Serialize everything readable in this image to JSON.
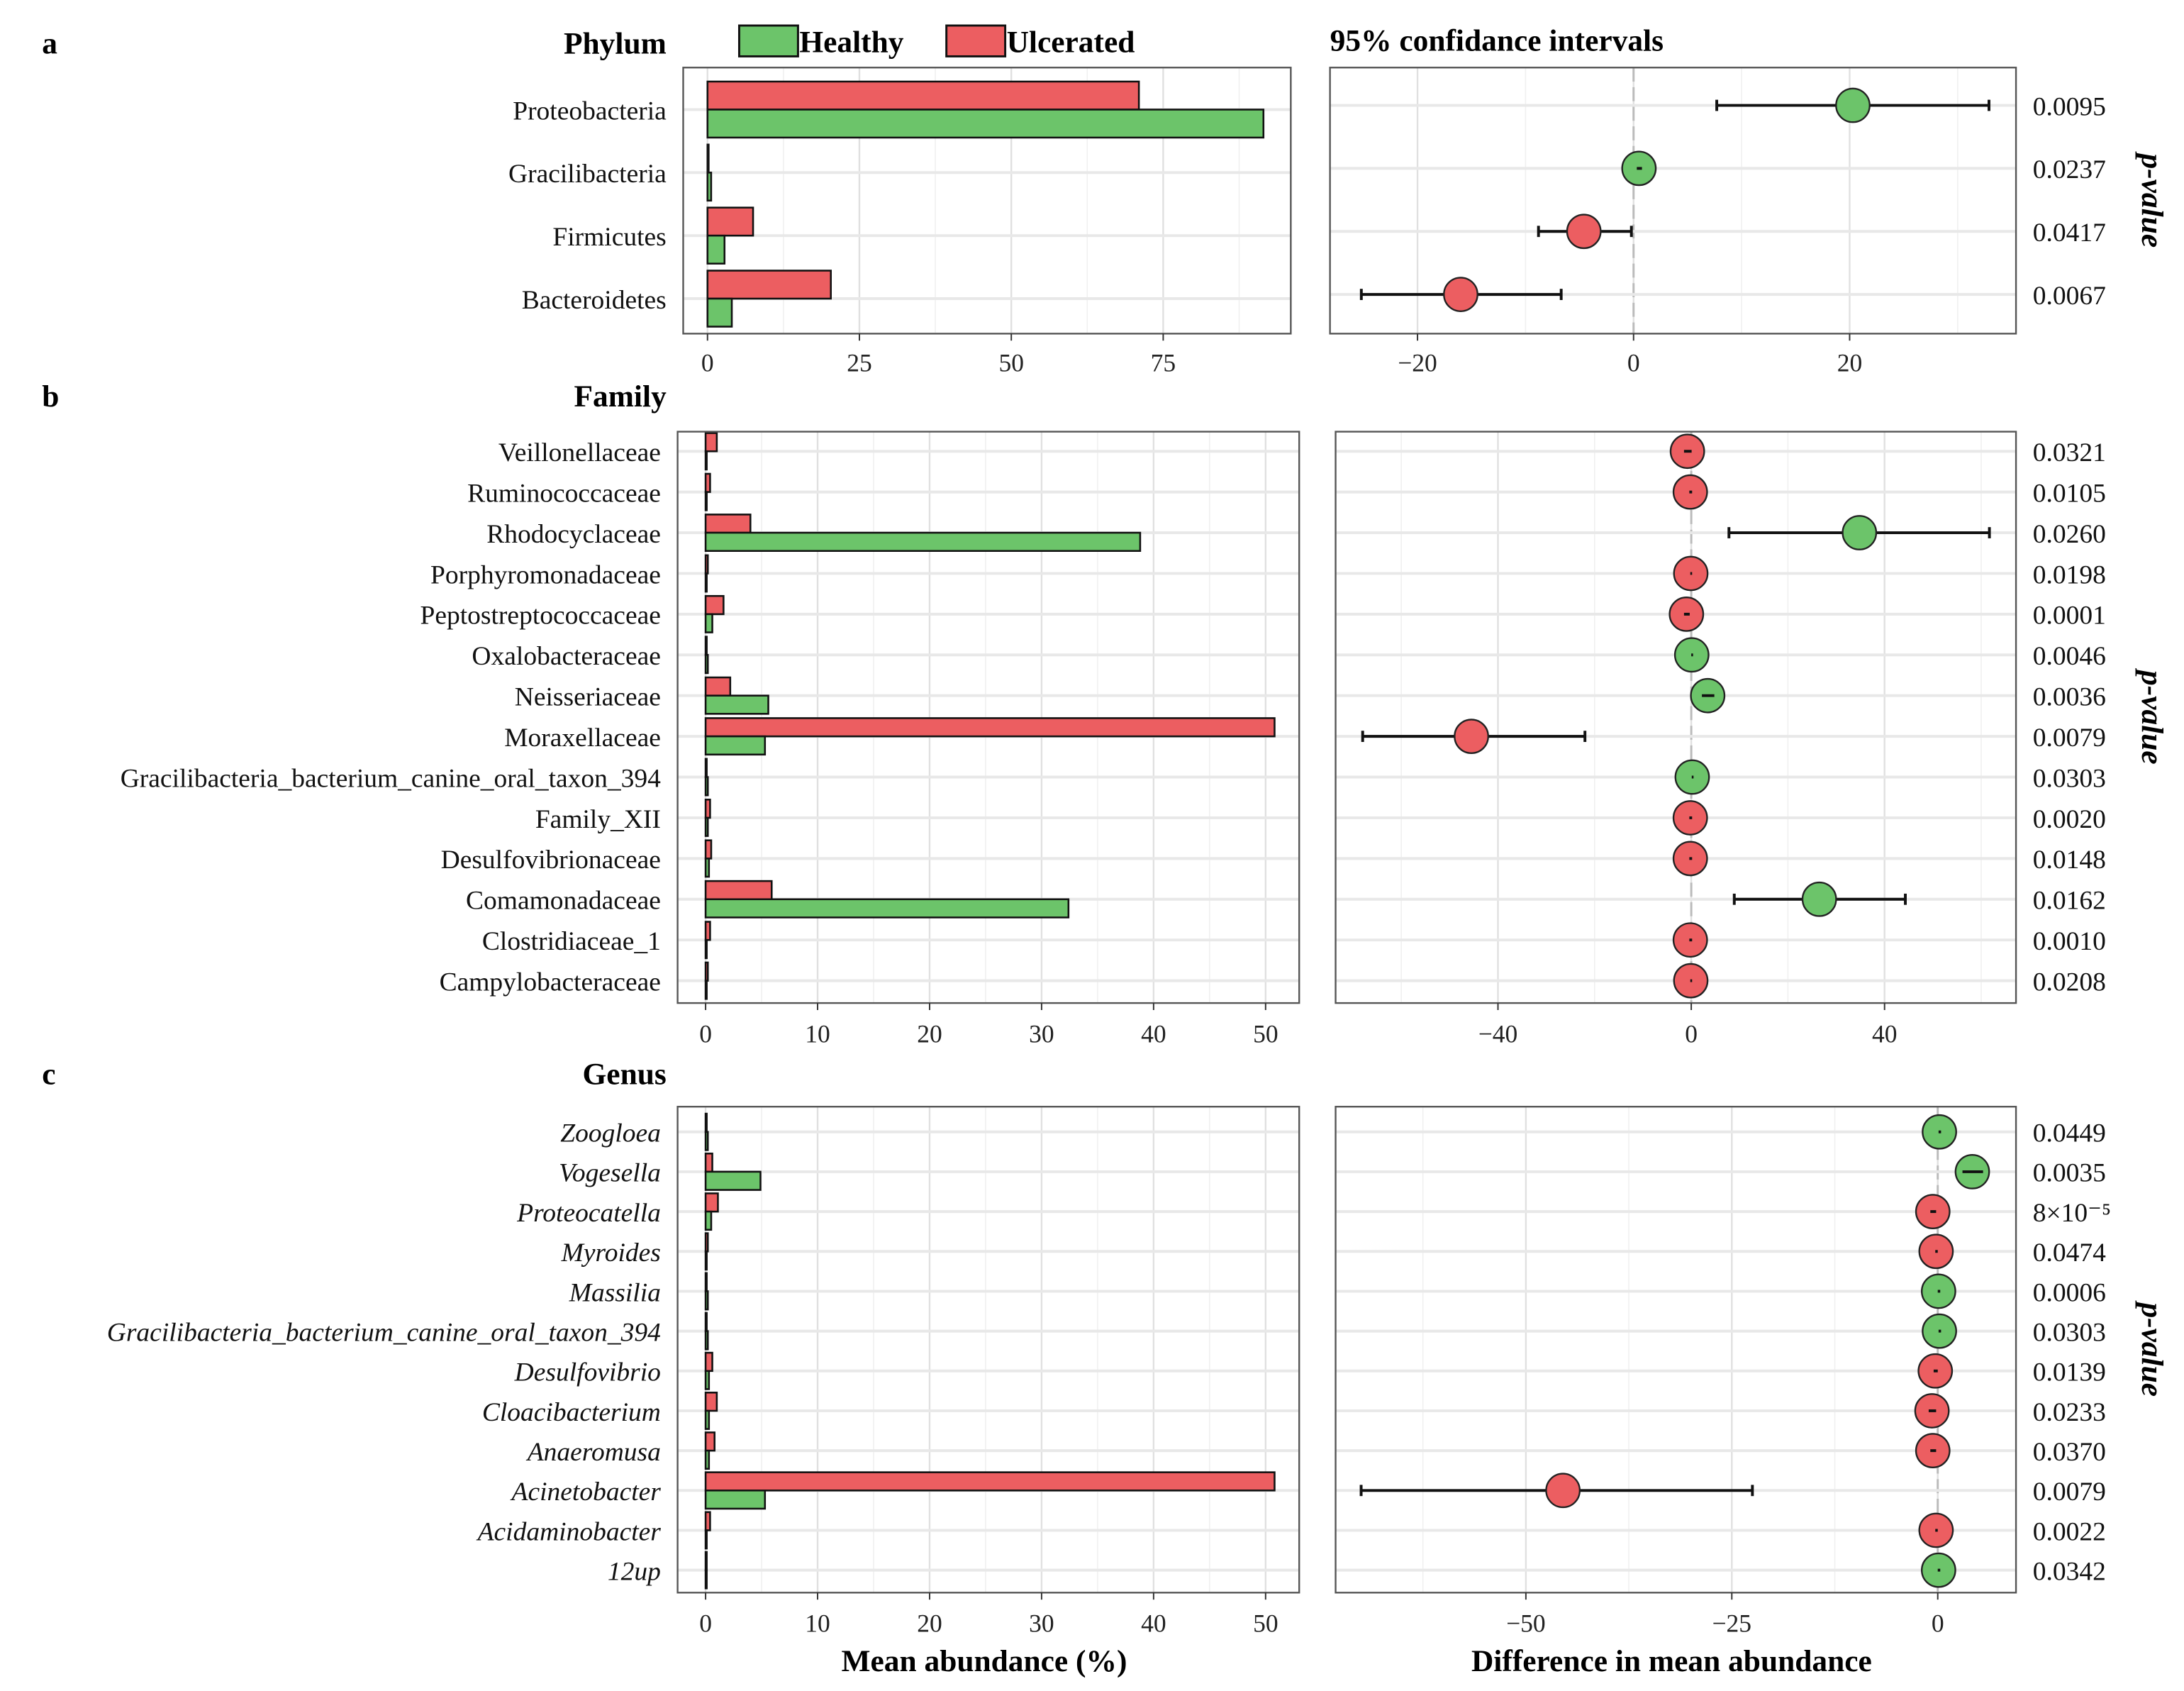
{
  "colors": {
    "healthy": "#6cc46a",
    "ulcerated": "#ec5e61",
    "grid": "#e6e6e6"
  },
  "legend": {
    "healthy": "Healthy",
    "ulcerated": "Ulcerated"
  },
  "ci_title": "95% confidance intervals",
  "pvalue_label": "p-value",
  "xlabel_left": "Mean abundance (%)",
  "xlabel_right": "Difference in mean abundance",
  "chart_data": [
    {
      "type": "bar",
      "panel": "a",
      "title": "Phylum",
      "italic": false,
      "categories": [
        "Proteobacteria",
        "Gracilibacteria",
        "Firmicutes",
        "Bacteroidetes"
      ],
      "series": [
        {
          "name": "Ulcerated",
          "values": [
            71,
            0.1,
            7.5,
            20.3
          ]
        },
        {
          "name": "Healthy",
          "values": [
            91.5,
            0.6,
            2.8,
            4.0
          ]
        }
      ],
      "xlim": [
        -4,
        96
      ],
      "xticks": [
        0,
        25,
        50,
        75
      ],
      "ci": {
        "estimate": [
          20.3,
          0.5,
          -4.6,
          -16.0
        ],
        "lower": [
          7.7,
          0.3,
          -8.8,
          -25.2
        ],
        "upper": [
          32.9,
          0.7,
          -0.2,
          -6.7
        ],
        "enriched": [
          "Healthy",
          "Healthy",
          "Ulcerated",
          "Ulcerated"
        ],
        "xlim": [
          -28.1,
          35.4
        ],
        "xticks": [
          -20,
          0,
          20
        ]
      },
      "p_values": [
        "0.0095",
        "0.0237",
        "0.0417",
        "0.0067"
      ]
    },
    {
      "type": "bar",
      "panel": "b",
      "title": "Family",
      "italic": false,
      "categories": [
        "Veillonellaceae",
        "Ruminococcaceae",
        "Rhodocyclaceae",
        "Porphyromonadaceae",
        "Peptostreptococcaceae",
        "Oxalobacteraceae",
        "Neisseriaceae",
        "Moraxellaceae",
        "Gracilibacteria_bacterium_canine_oral_taxon_394",
        "Family_XII",
        "Desulfovibrionaceae",
        "Comamonadaceae",
        "Clostridiaceae_1",
        "Campylobacteraceae"
      ],
      "series": [
        {
          "name": "Ulcerated",
          "values": [
            1.0,
            0.4,
            4.0,
            0.2,
            1.6,
            0.05,
            2.2,
            50.8,
            0.05,
            0.4,
            0.5,
            5.9,
            0.4,
            0.2
          ]
        },
        {
          "name": "Healthy",
          "values": [
            0.1,
            0.1,
            38.8,
            0.05,
            0.6,
            0.2,
            5.6,
            5.3,
            0.2,
            0.2,
            0.3,
            32.4,
            0.1,
            0.05
          ]
        }
      ],
      "xlim": [
        -2.5,
        53
      ],
      "xticks": [
        0,
        10,
        20,
        30,
        40,
        50
      ],
      "ci": {
        "estimate": [
          -0.8,
          -0.2,
          34.8,
          -0.1,
          -1.0,
          0.1,
          3.4,
          -45.5,
          0.2,
          -0.2,
          -0.2,
          26.5,
          -0.2,
          -0.1
        ],
        "lower": [
          -1.5,
          -0.4,
          7.8,
          -0.2,
          -1.5,
          0.0,
          2.2,
          -68.0,
          0.1,
          -0.4,
          -0.4,
          8.9,
          -0.4,
          -0.2
        ],
        "upper": [
          -0.1,
          0.0,
          61.7,
          0.0,
          -0.5,
          0.2,
          4.6,
          -22.0,
          0.3,
          0.0,
          0.0,
          44.3,
          0.0,
          0.0
        ],
        "enriched": [
          "Ulcerated",
          "Ulcerated",
          "Healthy",
          "Ulcerated",
          "Ulcerated",
          "Healthy",
          "Healthy",
          "Ulcerated",
          "Healthy",
          "Ulcerated",
          "Ulcerated",
          "Healthy",
          "Ulcerated",
          "Ulcerated"
        ],
        "xlim": [
          -73.6,
          67.2
        ],
        "xticks": [
          -40,
          0,
          40
        ]
      },
      "p_values": [
        "0.0321",
        "0.0105",
        "0.0260",
        "0.0198",
        "0.0001",
        "0.0046",
        "0.0036",
        "0.0079",
        "0.0303",
        "0.0020",
        "0.0148",
        "0.0162",
        "0.0010",
        "0.0208"
      ]
    },
    {
      "type": "bar",
      "panel": "c",
      "title": "Genus",
      "italic": true,
      "categories": [
        "Zoogloea",
        "Vogesella",
        "Proteocatella",
        "Myroides",
        "Massilia",
        "Gracilibacteria_bacterium_canine_oral_taxon_394",
        "Desulfovibrio",
        "Cloacibacterium",
        "Anaeromusa",
        "Acinetobacter",
        "Acidaminobacter",
        "12up"
      ],
      "series": [
        {
          "name": "Ulcerated",
          "values": [
            0.05,
            0.6,
            1.1,
            0.2,
            0.05,
            0.05,
            0.6,
            1.0,
            0.8,
            50.8,
            0.4,
            0.05
          ]
        },
        {
          "name": "Healthy",
          "values": [
            0.2,
            4.9,
            0.5,
            0.05,
            0.2,
            0.2,
            0.3,
            0.3,
            0.3,
            5.3,
            0.1,
            0.1
          ]
        }
      ],
      "xlim": [
        -2.5,
        53
      ],
      "xticks": [
        0,
        10,
        20,
        30,
        40,
        50
      ],
      "ci": {
        "estimate": [
          0.2,
          4.2,
          -0.6,
          -0.2,
          0.1,
          0.2,
          -0.3,
          -0.7,
          -0.6,
          -45.5,
          -0.2,
          0.1
        ],
        "lower": [
          0.1,
          3.0,
          -0.9,
          -0.3,
          0.0,
          0.1,
          -0.5,
          -1.1,
          -0.9,
          -70.0,
          -0.3,
          0.0
        ],
        "upper": [
          0.3,
          5.4,
          -0.3,
          -0.1,
          0.2,
          0.3,
          -0.1,
          -0.3,
          -0.3,
          -22.5,
          -0.1,
          0.2
        ],
        "enriched": [
          "Healthy",
          "Healthy",
          "Ulcerated",
          "Ulcerated",
          "Healthy",
          "Healthy",
          "Ulcerated",
          "Ulcerated",
          "Ulcerated",
          "Ulcerated",
          "Ulcerated",
          "Healthy"
        ],
        "xlim": [
          -73.1,
          9.5
        ],
        "xticks": [
          -50,
          -25,
          0
        ]
      },
      "p_values": [
        "0.0449",
        "0.0035",
        "8×10⁻⁵",
        "0.0474",
        "0.0006",
        "0.0303",
        "0.0139",
        "0.0233",
        "0.0370",
        "0.0079",
        "0.0022",
        "0.0342"
      ]
    }
  ]
}
